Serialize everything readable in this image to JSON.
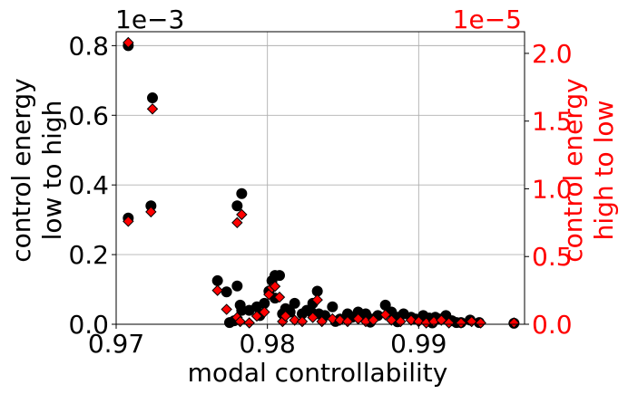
{
  "chart_data": {
    "type": "scatter",
    "xlabel": "modal controllability",
    "ylabel_left": "control energy\nlow to high",
    "ylabel_right": "control energy\nhigh to low",
    "left_exponent": "1e−3",
    "right_exponent": "1e−5",
    "xlim": [
      0.97,
      0.997
    ],
    "ylim_left": [
      0,
      0.84
    ],
    "ylim_right": [
      0,
      2.16
    ],
    "xticks": [
      0.97,
      0.98,
      0.99
    ],
    "xtick_labels": [
      "0.97",
      "0.98",
      "0.99"
    ],
    "yticks_left": [
      0,
      0.2,
      0.4,
      0.6,
      0.8
    ],
    "ytick_labels_left": [
      "0.0",
      "0.2",
      "0.4",
      "0.6",
      "0.8"
    ],
    "yticks_right": [
      0,
      0.5,
      1.0,
      1.5,
      2.0
    ],
    "ytick_labels_right": [
      "0.0",
      "0.5",
      "1.0",
      "1.5",
      "2.0"
    ],
    "grid": true,
    "colors": {
      "left": "#000000",
      "right": "#ff0000",
      "marker_edge": "#000000"
    },
    "series": [
      {
        "axis": "left",
        "marker": "circle",
        "color": "#000000",
        "points": [
          [
            0.9708,
            0.8
          ],
          [
            0.9724,
            0.65
          ],
          [
            0.9723,
            0.34
          ],
          [
            0.9708,
            0.305
          ],
          [
            0.9783,
            0.375
          ],
          [
            0.978,
            0.34
          ],
          [
            0.9767,
            0.125
          ],
          [
            0.9773,
            0.093
          ],
          [
            0.978,
            0.11
          ],
          [
            0.9788,
            0.04
          ],
          [
            0.9782,
            0.055
          ],
          [
            0.9783,
            0.04
          ],
          [
            0.9778,
            0.01
          ],
          [
            0.9775,
            0.005
          ],
          [
            0.9793,
            0.05
          ],
          [
            0.9795,
            0.025
          ],
          [
            0.9798,
            0.06
          ],
          [
            0.9801,
            0.095
          ],
          [
            0.9803,
            0.125
          ],
          [
            0.9805,
            0.14
          ],
          [
            0.9808,
            0.14
          ],
          [
            0.9805,
            0.075
          ],
          [
            0.9812,
            0.045
          ],
          [
            0.981,
            0.03
          ],
          [
            0.9815,
            0.035
          ],
          [
            0.9818,
            0.06
          ],
          [
            0.9823,
            0.03
          ],
          [
            0.9826,
            0.04
          ],
          [
            0.983,
            0.06
          ],
          [
            0.9833,
            0.095
          ],
          [
            0.9829,
            0.035
          ],
          [
            0.9834,
            0.03
          ],
          [
            0.9838,
            0.025
          ],
          [
            0.9843,
            0.05
          ],
          [
            0.9848,
            0.015
          ],
          [
            0.9853,
            0.03
          ],
          [
            0.9856,
            0.02
          ],
          [
            0.986,
            0.035
          ],
          [
            0.9865,
            0.03
          ],
          [
            0.9869,
            0.015
          ],
          [
            0.9873,
            0.025
          ],
          [
            0.9878,
            0.055
          ],
          [
            0.9882,
            0.035
          ],
          [
            0.9886,
            0.02
          ],
          [
            0.989,
            0.03
          ],
          [
            0.9895,
            0.02
          ],
          [
            0.9898,
            0.015
          ],
          [
            0.9903,
            0.025
          ],
          [
            0.9907,
            0.018
          ],
          [
            0.9911,
            0.02
          ],
          [
            0.9914,
            0.015
          ],
          [
            0.9918,
            0.025
          ],
          [
            0.9922,
            0.01
          ],
          [
            0.9928,
            0.005
          ],
          [
            0.9934,
            0.012
          ],
          [
            0.994,
            0.005
          ],
          [
            0.9963,
            0.003
          ],
          [
            0.9845,
            0.008
          ],
          [
            0.9868,
            0.006
          ],
          [
            0.9886,
            0.007
          ],
          [
            0.9909,
            0.004
          ],
          [
            0.9925,
            0.005
          ]
        ]
      },
      {
        "axis": "right",
        "marker": "diamond",
        "color": "#ff0000",
        "points": [
          [
            0.9708,
            2.08
          ],
          [
            0.9724,
            1.59
          ],
          [
            0.9723,
            0.83
          ],
          [
            0.9708,
            0.76
          ],
          [
            0.9783,
            0.81
          ],
          [
            0.978,
            0.75
          ],
          [
            0.9767,
            0.25
          ],
          [
            0.9773,
            0.11
          ],
          [
            0.978,
            0.05
          ],
          [
            0.9782,
            0.02
          ],
          [
            0.9788,
            0.01
          ],
          [
            0.9793,
            0.06
          ],
          [
            0.9798,
            0.09
          ],
          [
            0.9801,
            0.22
          ],
          [
            0.9803,
            0.27
          ],
          [
            0.9805,
            0.28
          ],
          [
            0.9808,
            0.2
          ],
          [
            0.981,
            0.02
          ],
          [
            0.9812,
            0.06
          ],
          [
            0.9818,
            0.03
          ],
          [
            0.9823,
            0.02
          ],
          [
            0.983,
            0.05
          ],
          [
            0.9833,
            0.18
          ],
          [
            0.9836,
            0.02
          ],
          [
            0.9843,
            0.04
          ],
          [
            0.9848,
            0.03
          ],
          [
            0.9853,
            0.02
          ],
          [
            0.986,
            0.04
          ],
          [
            0.9865,
            0.02
          ],
          [
            0.987,
            0.03
          ],
          [
            0.9878,
            0.07
          ],
          [
            0.9882,
            0.03
          ],
          [
            0.9888,
            0.02
          ],
          [
            0.9895,
            0.03
          ],
          [
            0.99,
            0.02
          ],
          [
            0.9905,
            0.01
          ],
          [
            0.991,
            0.02
          ],
          [
            0.9915,
            0.03
          ],
          [
            0.992,
            0.01
          ],
          [
            0.9928,
            0.01
          ],
          [
            0.9935,
            0.02
          ],
          [
            0.9941,
            0.01
          ],
          [
            0.9963,
            0.01
          ]
        ]
      }
    ]
  }
}
